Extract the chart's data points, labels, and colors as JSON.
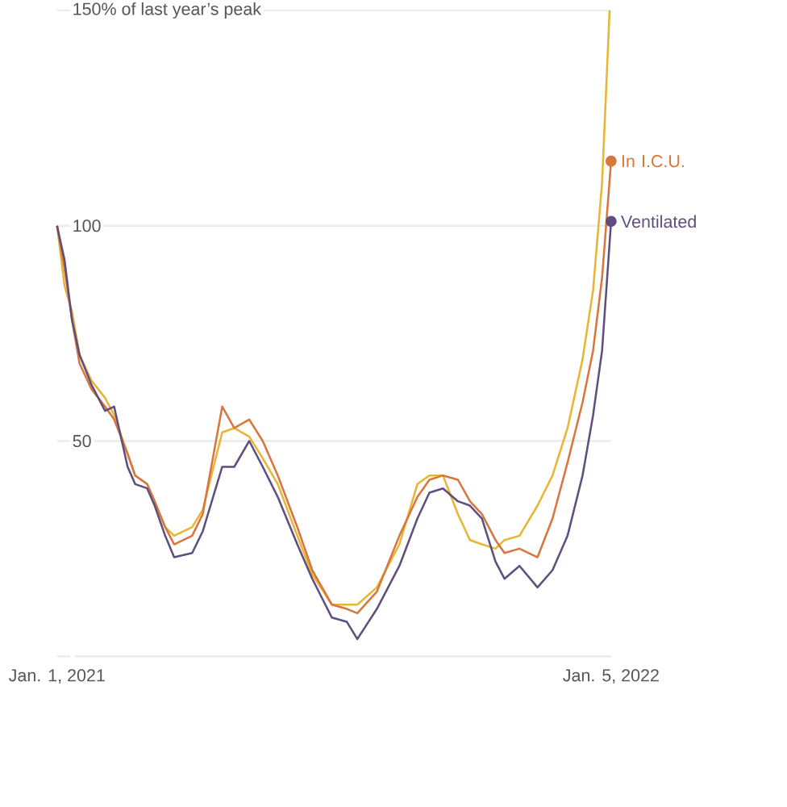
{
  "chart_data": {
    "type": "line",
    "xlim": [
      "2021-01-01",
      "2022-01-05"
    ],
    "xticks": [
      {
        "value": "2021-01-01",
        "label": "Jan. 1, 2021"
      },
      {
        "value": "2022-01-05",
        "label": "Jan. 5, 2022"
      }
    ],
    "ylim": [
      0,
      150
    ],
    "yticks": [
      {
        "value": 0,
        "label": null
      },
      50,
      100,
      {
        "value": 150,
        "label": "150% of last year’s peak"
      }
    ],
    "grid": "y",
    "x": [
      "2021-01-01",
      "2021-01-06",
      "2021-01-11",
      "2021-01-16",
      "2021-01-24",
      "2021-02-02",
      "2021-02-08",
      "2021-02-17",
      "2021-02-22",
      "2021-03-02",
      "2021-03-07",
      "2021-03-14",
      "2021-03-20",
      "2021-04-01",
      "2021-04-08",
      "2021-04-21",
      "2021-04-29",
      "2021-05-09",
      "2021-05-18",
      "2021-05-28",
      "2021-06-10",
      "2021-06-20",
      "2021-07-03",
      "2021-07-13",
      "2021-07-20",
      "2021-08-02",
      "2021-08-17",
      "2021-08-29",
      "2021-09-06",
      "2021-09-15",
      "2021-09-25",
      "2021-10-03",
      "2021-10-11",
      "2021-10-20",
      "2021-10-26",
      "2021-11-05",
      "2021-11-17",
      "2021-11-27",
      "2021-12-07",
      "2021-12-17",
      "2021-12-24",
      "2021-12-30",
      "2022-01-05"
    ],
    "series": [
      {
        "color": "#e8b534",
        "x": [
          "2021-01-01",
          "2021-01-06",
          "2021-01-11",
          "2021-01-16",
          "2021-01-24",
          "2021-02-02",
          "2021-02-08",
          "2021-02-17",
          "2021-02-22",
          "2021-03-02",
          "2021-03-07",
          "2021-03-14",
          "2021-03-20",
          "2021-04-01",
          "2021-04-08",
          "2021-04-21",
          "2021-04-29",
          "2021-05-09",
          "2021-05-18",
          "2021-05-28",
          "2021-06-10",
          "2021-06-20",
          "2021-07-03",
          "2021-07-13",
          "2021-07-20",
          "2021-08-02",
          "2021-08-17",
          "2021-08-29",
          "2021-09-06",
          "2021-09-15",
          "2021-09-25",
          "2021-10-03",
          "2021-10-11",
          "2021-10-20",
          "2021-10-26",
          "2021-11-05",
          "2021-11-17",
          "2021-11-27",
          "2021-12-07",
          "2021-12-17",
          "2021-12-24",
          "2021-12-30",
          "2022-01-04"
        ],
        "values": [
          100,
          86,
          80,
          70,
          64,
          60,
          56,
          47,
          42,
          40,
          36,
          30,
          28,
          30,
          34,
          52,
          53,
          51,
          46,
          40,
          28,
          19,
          12,
          12,
          12,
          16,
          26,
          40,
          42,
          42,
          33,
          27,
          26,
          25,
          27,
          28,
          35,
          42,
          53,
          69,
          85,
          110,
          150
        ]
      },
      {
        "name": "In I.C.U.",
        "color": "#d9763e",
        "values": [
          100,
          90,
          78,
          68,
          62,
          58,
          55,
          47,
          42,
          40,
          36,
          30,
          26,
          28,
          33,
          58,
          53,
          55,
          50,
          42,
          30,
          20,
          12,
          11,
          10,
          15,
          28,
          37,
          41,
          42,
          41,
          36,
          33,
          27,
          24,
          25,
          23,
          32,
          45,
          59,
          71,
          88,
          115
        ]
      },
      {
        "name": "Ventilated",
        "color": "#5e4f7e",
        "values": [
          100,
          92,
          78,
          70,
          63,
          57,
          58,
          44,
          40,
          39,
          35,
          28,
          23,
          24,
          29,
          44,
          44,
          50,
          44,
          37,
          26,
          18,
          9,
          8,
          4,
          11,
          21,
          32,
          38,
          39,
          36,
          35,
          32,
          22,
          18,
          21,
          16,
          20,
          28,
          42,
          56,
          71,
          101
        ]
      }
    ]
  }
}
